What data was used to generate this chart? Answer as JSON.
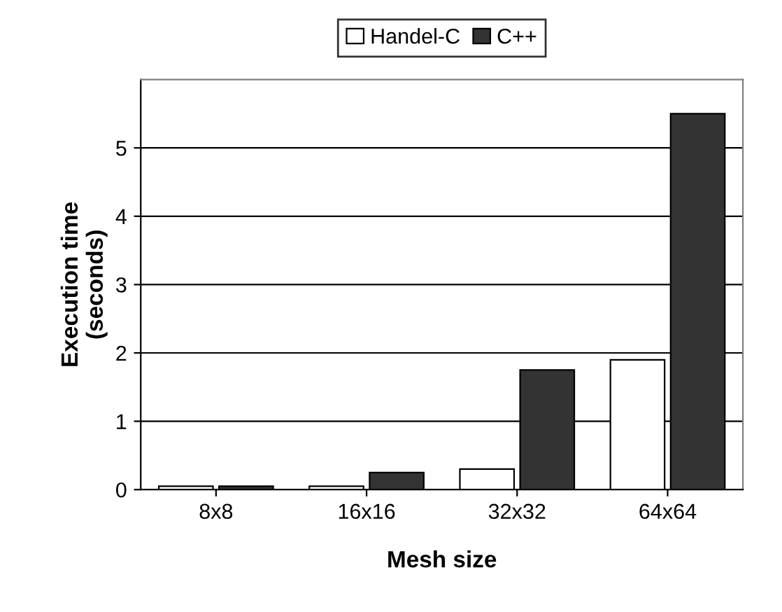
{
  "chart_data": {
    "type": "bar",
    "xlabel": "Mesh size",
    "ylabel": "Execution time\n(seconds)",
    "categories": [
      "8x8",
      "16x16",
      "32x32",
      "64x64"
    ],
    "series": [
      {
        "name": "Handel-C",
        "color": "#ffffff",
        "values": [
          0.05,
          0.05,
          0.3,
          1.9
        ]
      },
      {
        "name": "C++",
        "color": "#333333",
        "values": [
          0.05,
          0.25,
          1.75,
          5.5
        ]
      }
    ],
    "ylim": [
      0,
      6
    ],
    "yticks": [
      0,
      1,
      2,
      3,
      4,
      5
    ],
    "grid": "y",
    "legend": "top"
  }
}
